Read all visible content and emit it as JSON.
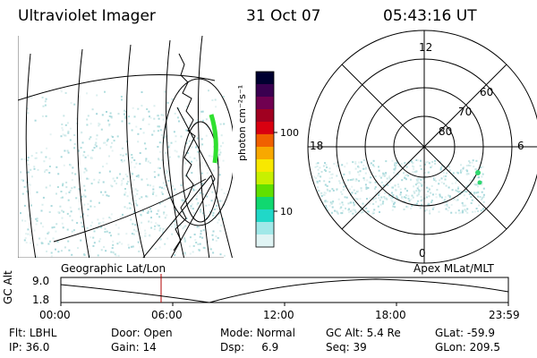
{
  "header": {
    "instrument": "Ultraviolet Imager",
    "date": "31 Oct 07",
    "time": "05:43:16 UT"
  },
  "colorbar": {
    "unit_label": "photon cm⁻²s⁻¹",
    "ticks": [
      "100",
      "10"
    ],
    "colors": [
      "#000030",
      "#3a0050",
      "#700050",
      "#a00020",
      "#d80010",
      "#f06000",
      "#f8a800",
      "#f8e800",
      "#c8f000",
      "#60e000",
      "#10d870",
      "#20d8c8",
      "#a0e8e8",
      "#e0f4f4"
    ]
  },
  "polar": {
    "mlt_labels": {
      "top": "12",
      "right": "6",
      "bottom": "0",
      "left": "18"
    },
    "lat_labels": [
      "60",
      "70",
      "80"
    ]
  },
  "map": {
    "left_label": "Geographic Lat/Lon",
    "right_label": "Apex  MLat/MLT"
  },
  "orbit": {
    "ylabel": "GC Alt",
    "ymax": "9.0",
    "ymin": "1.8",
    "xticks": [
      "00:00",
      "06:00",
      "12:00",
      "18:00",
      "23:59"
    ]
  },
  "status": [
    [
      {
        "k": "Flt:",
        "v": "LBHL"
      },
      {
        "k": "Door:",
        "v": "Open"
      },
      {
        "k": "Mode:",
        "v": "Normal"
      },
      {
        "k": "GC Alt:",
        "v": "5.4 Re"
      },
      {
        "k": "GLat:",
        "v": "-59.9"
      }
    ],
    [
      {
        "k": "IP:",
        "v": "36.0"
      },
      {
        "k": "Gain:",
        "v": "14"
      },
      {
        "k": "Dsp:",
        "v": "6.9"
      },
      {
        "k": "Seq:",
        "v": "39"
      },
      {
        "k": "GLon:",
        "v": "209.5"
      }
    ]
  ]
}
